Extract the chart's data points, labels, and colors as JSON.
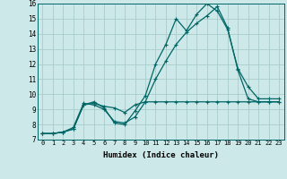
{
  "xlabel": "Humidex (Indice chaleur)",
  "bg_color": "#cce8e8",
  "line_color": "#006666",
  "grid_color": "#aacccc",
  "xlim": [
    -0.5,
    23.5
  ],
  "ylim": [
    7,
    16
  ],
  "xticks": [
    0,
    1,
    2,
    3,
    4,
    5,
    6,
    7,
    8,
    9,
    10,
    11,
    12,
    13,
    14,
    15,
    16,
    17,
    18,
    19,
    20,
    21,
    22,
    23
  ],
  "yticks": [
    7,
    8,
    9,
    10,
    11,
    12,
    13,
    14,
    15,
    16
  ],
  "line1_x": [
    0,
    1,
    2,
    3,
    4,
    5,
    6,
    7,
    8,
    9,
    10,
    11,
    12,
    13,
    14,
    15,
    16,
    17,
    18,
    19,
    20,
    21,
    22,
    23
  ],
  "line1_y": [
    7.4,
    7.4,
    7.5,
    7.7,
    9.3,
    9.5,
    9.1,
    8.1,
    8.0,
    8.9,
    9.9,
    12.0,
    13.3,
    15.0,
    14.2,
    15.3,
    16.0,
    15.5,
    14.3,
    11.7,
    10.5,
    9.7,
    9.7,
    9.7
  ],
  "line2_x": [
    0,
    1,
    2,
    3,
    4,
    5,
    6,
    7,
    8,
    9,
    10,
    11,
    12,
    13,
    14,
    15,
    16,
    17,
    18,
    19,
    20,
    21,
    22,
    23
  ],
  "line2_y": [
    7.4,
    7.4,
    7.5,
    7.8,
    9.4,
    9.3,
    9.0,
    8.2,
    8.1,
    8.5,
    9.5,
    11.0,
    12.2,
    13.3,
    14.1,
    14.7,
    15.2,
    15.8,
    14.4,
    11.6,
    9.7,
    9.5,
    9.5,
    9.5
  ],
  "line3_x": [
    0,
    1,
    2,
    3,
    4,
    5,
    6,
    7,
    8,
    9,
    10,
    11,
    12,
    13,
    14,
    15,
    16,
    17,
    18,
    19,
    20,
    21,
    22,
    23
  ],
  "line3_y": [
    7.4,
    7.4,
    7.5,
    7.7,
    9.3,
    9.4,
    9.2,
    9.1,
    8.8,
    9.3,
    9.5,
    9.5,
    9.5,
    9.5,
    9.5,
    9.5,
    9.5,
    9.5,
    9.5,
    9.5,
    9.5,
    9.5,
    9.5,
    9.5
  ]
}
